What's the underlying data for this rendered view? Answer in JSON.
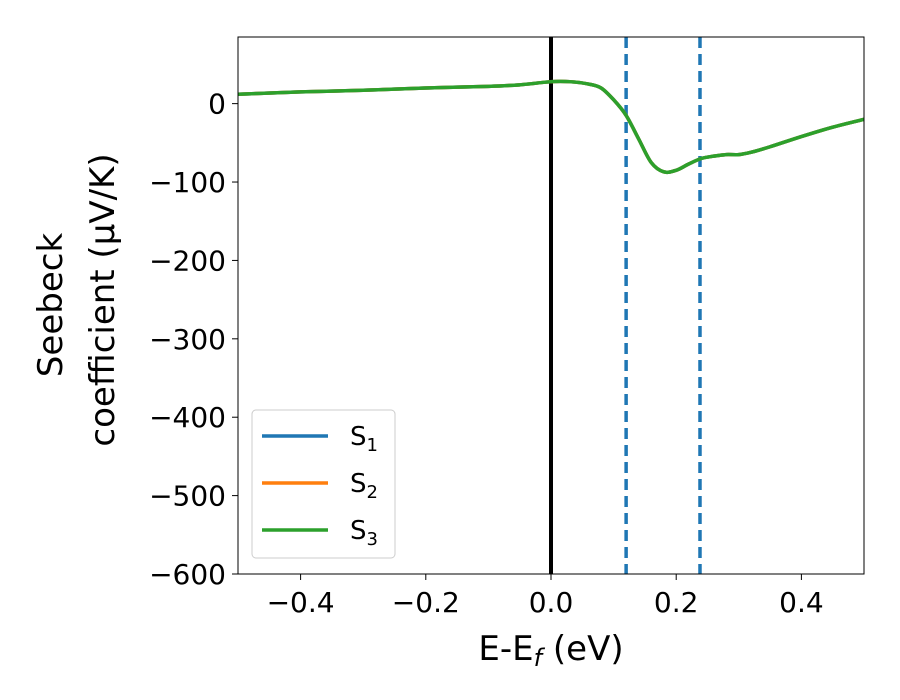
{
  "chart_data": {
    "type": "line",
    "title": "",
    "xlabel": {
      "main": "E-E",
      "sub": "f",
      "unit": " (eV)"
    },
    "ylabel": {
      "line1": "Seebeck",
      "line2": "coefficient  (μV/K)"
    },
    "xlim": [
      -0.5,
      0.5
    ],
    "ylim": [
      -600,
      85
    ],
    "grid": false,
    "legend_position": "lower-left",
    "xticks": [
      -0.4,
      -0.2,
      0.0,
      0.2,
      0.4
    ],
    "xtick_labels": [
      "−0.4",
      "−0.2",
      "0.0",
      "0.2",
      "0.4"
    ],
    "yticks": [
      0,
      -100,
      -200,
      -300,
      -400,
      -500,
      -600
    ],
    "ytick_labels": [
      "0",
      "−100",
      "−200",
      "−300",
      "−400",
      "−500",
      "−600"
    ],
    "x": [
      -0.5,
      -0.4,
      -0.3,
      -0.2,
      -0.1,
      -0.05,
      0.0,
      0.03,
      0.06,
      0.08,
      0.1,
      0.12,
      0.14,
      0.16,
      0.18,
      0.2,
      0.22,
      0.24,
      0.26,
      0.28,
      0.3,
      0.32,
      0.35,
      0.4,
      0.45,
      0.5
    ],
    "series": [
      {
        "name": "S1",
        "label_base": "S",
        "label_sub": "1",
        "color": "#1f77b4",
        "values": [
          12,
          15,
          17,
          20,
          22,
          24,
          28,
          28,
          25,
          20,
          5,
          -15,
          -45,
          -75,
          -87,
          -85,
          -77,
          -70,
          -67,
          -65,
          -65,
          -62,
          -55,
          -42,
          -30,
          -20
        ]
      },
      {
        "name": "S2",
        "label_base": "S",
        "label_sub": "2",
        "color": "#ff7f0e",
        "values": [
          12,
          15,
          17,
          20,
          22,
          24,
          28,
          28,
          25,
          20,
          5,
          -15,
          -45,
          -75,
          -87,
          -85,
          -77,
          -70,
          -67,
          -65,
          -65,
          -62,
          -55,
          -42,
          -30,
          -20
        ]
      },
      {
        "name": "S3",
        "label_base": "S",
        "label_sub": "3",
        "color": "#2ca02c",
        "values": [
          12,
          15,
          17,
          20,
          22,
          24,
          28,
          28,
          25,
          20,
          5,
          -15,
          -45,
          -75,
          -87,
          -85,
          -77,
          -70,
          -67,
          -65,
          -65,
          -62,
          -55,
          -42,
          -30,
          -20
        ]
      }
    ],
    "vlines": [
      {
        "x": 0.0,
        "color": "#000000",
        "style": "solid"
      },
      {
        "x": 0.12,
        "color": "#1f77b4",
        "style": "dashed"
      },
      {
        "x": 0.238,
        "color": "#1f77b4",
        "style": "dashed"
      }
    ]
  }
}
